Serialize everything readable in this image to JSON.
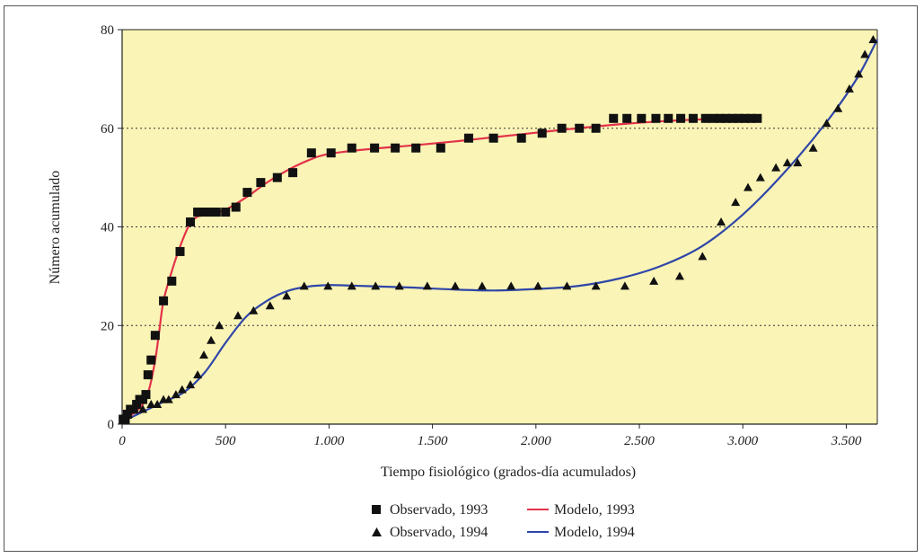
{
  "chart_data": {
    "type": "scatter",
    "xlabel": "Tiempo fisiológico (grados-día acumulados)",
    "ylabel": "Número acumulado",
    "xlim": [
      0,
      3650
    ],
    "ylim": [
      0,
      80
    ],
    "x_ticks": [
      {
        "value": 0,
        "label": "0"
      },
      {
        "value": 500,
        "label": "500"
      },
      {
        "value": 1000,
        "label": "1.000"
      },
      {
        "value": 1500,
        "label": "1.500"
      },
      {
        "value": 2000,
        "label": "2.000"
      },
      {
        "value": 2500,
        "label": "2.500"
      },
      {
        "value": 3000,
        "label": "3.000"
      },
      {
        "value": 3500,
        "label": "3.500"
      }
    ],
    "y_ticks": [
      {
        "value": 0,
        "label": "0"
      },
      {
        "value": 20,
        "label": "20"
      },
      {
        "value": 40,
        "label": "40"
      },
      {
        "value": 60,
        "label": "60"
      },
      {
        "value": 80,
        "label": "80"
      }
    ],
    "grid": "horizontal dotted",
    "background": "#faf4b6",
    "legend_position": "bottom-center",
    "series": [
      {
        "name": "Observado, 1993",
        "kind": "scatter",
        "marker": "square",
        "color": "#111111",
        "points": [
          [
            5,
            1
          ],
          [
            15,
            1
          ],
          [
            25,
            2
          ],
          [
            40,
            3
          ],
          [
            55,
            3
          ],
          [
            70,
            4
          ],
          [
            85,
            5
          ],
          [
            100,
            5
          ],
          [
            115,
            6
          ],
          [
            125,
            10
          ],
          [
            140,
            13
          ],
          [
            160,
            18
          ],
          [
            200,
            25
          ],
          [
            240,
            29
          ],
          [
            280,
            35
          ],
          [
            330,
            41
          ],
          [
            365,
            43
          ],
          [
            395,
            43
          ],
          [
            425,
            43
          ],
          [
            455,
            43
          ],
          [
            500,
            43
          ],
          [
            550,
            44
          ],
          [
            605,
            47
          ],
          [
            670,
            49
          ],
          [
            750,
            50
          ],
          [
            825,
            51
          ],
          [
            915,
            55
          ],
          [
            1010,
            55
          ],
          [
            1110,
            56
          ],
          [
            1220,
            56
          ],
          [
            1320,
            56
          ],
          [
            1420,
            56
          ],
          [
            1540,
            56
          ],
          [
            1675,
            58
          ],
          [
            1795,
            58
          ],
          [
            1930,
            58
          ],
          [
            2030,
            59
          ],
          [
            2125,
            60
          ],
          [
            2210,
            60
          ],
          [
            2290,
            60
          ],
          [
            2375,
            62
          ],
          [
            2440,
            62
          ],
          [
            2510,
            62
          ],
          [
            2580,
            62
          ],
          [
            2640,
            62
          ],
          [
            2700,
            62
          ],
          [
            2760,
            62
          ],
          [
            2820,
            62
          ],
          [
            2860,
            62
          ],
          [
            2890,
            62
          ],
          [
            2920,
            62
          ],
          [
            2950,
            62
          ],
          [
            2980,
            62
          ],
          [
            3010,
            62
          ],
          [
            3040,
            62
          ],
          [
            3070,
            62
          ]
        ]
      },
      {
        "name": "Observado, 1994",
        "kind": "scatter",
        "marker": "triangle",
        "color": "#111111",
        "points": [
          [
            10,
            1
          ],
          [
            30,
            2
          ],
          [
            60,
            3
          ],
          [
            100,
            3
          ],
          [
            140,
            4
          ],
          [
            170,
            4
          ],
          [
            200,
            5
          ],
          [
            225,
            5
          ],
          [
            260,
            6
          ],
          [
            290,
            7
          ],
          [
            330,
            8
          ],
          [
            365,
            10
          ],
          [
            395,
            14
          ],
          [
            430,
            17
          ],
          [
            470,
            20
          ],
          [
            560,
            22
          ],
          [
            635,
            23
          ],
          [
            715,
            24
          ],
          [
            795,
            26
          ],
          [
            880,
            28
          ],
          [
            995,
            28
          ],
          [
            1110,
            28
          ],
          [
            1225,
            28
          ],
          [
            1340,
            28
          ],
          [
            1475,
            28
          ],
          [
            1610,
            28
          ],
          [
            1740,
            28
          ],
          [
            1880,
            28
          ],
          [
            2010,
            28
          ],
          [
            2150,
            28
          ],
          [
            2290,
            28
          ],
          [
            2430,
            28
          ],
          [
            2570,
            29
          ],
          [
            2695,
            30
          ],
          [
            2805,
            34
          ],
          [
            2895,
            41
          ],
          [
            2965,
            45
          ],
          [
            3025,
            48
          ],
          [
            3085,
            50
          ],
          [
            3160,
            52
          ],
          [
            3215,
            53
          ],
          [
            3265,
            53
          ],
          [
            3340,
            56
          ],
          [
            3405,
            61
          ],
          [
            3460,
            64
          ],
          [
            3515,
            68
          ],
          [
            3560,
            71
          ],
          [
            3590,
            75
          ],
          [
            3630,
            78
          ]
        ]
      },
      {
        "name": "Modelo, 1993",
        "kind": "line",
        "color": "#e3324a",
        "points": [
          [
            0,
            1
          ],
          [
            50,
            2
          ],
          [
            100,
            4
          ],
          [
            130,
            7
          ],
          [
            160,
            13
          ],
          [
            180,
            19
          ],
          [
            200,
            25
          ],
          [
            240,
            31
          ],
          [
            280,
            36
          ],
          [
            320,
            40
          ],
          [
            360,
            42
          ],
          [
            420,
            42.5
          ],
          [
            500,
            43.5
          ],
          [
            600,
            46
          ],
          [
            700,
            49
          ],
          [
            800,
            51.5
          ],
          [
            900,
            53.5
          ],
          [
            1000,
            54.8
          ],
          [
            1200,
            55.8
          ],
          [
            1400,
            56.5
          ],
          [
            1600,
            57.3
          ],
          [
            1800,
            58.2
          ],
          [
            2000,
            59.1
          ],
          [
            2200,
            60
          ],
          [
            2400,
            60.8
          ],
          [
            2600,
            61.4
          ],
          [
            2800,
            61.8
          ],
          [
            3000,
            62
          ],
          [
            3080,
            62
          ]
        ]
      },
      {
        "name": "Modelo, 1994",
        "kind": "line",
        "color": "#2f46a8",
        "points": [
          [
            0,
            0.5
          ],
          [
            100,
            2.5
          ],
          [
            200,
            4.5
          ],
          [
            300,
            6.5
          ],
          [
            400,
            10.5
          ],
          [
            500,
            16.5
          ],
          [
            600,
            21.8
          ],
          [
            700,
            25
          ],
          [
            800,
            27
          ],
          [
            900,
            27.9
          ],
          [
            1000,
            28.2
          ],
          [
            1100,
            28.1
          ],
          [
            1250,
            27.9
          ],
          [
            1400,
            27.7
          ],
          [
            1600,
            27.3
          ],
          [
            1800,
            27.1
          ],
          [
            2000,
            27.4
          ],
          [
            2200,
            28
          ],
          [
            2400,
            29.5
          ],
          [
            2600,
            32
          ],
          [
            2800,
            36
          ],
          [
            3000,
            42.5
          ],
          [
            3200,
            51
          ],
          [
            3400,
            61
          ],
          [
            3550,
            70
          ],
          [
            3650,
            78
          ]
        ]
      }
    ]
  }
}
